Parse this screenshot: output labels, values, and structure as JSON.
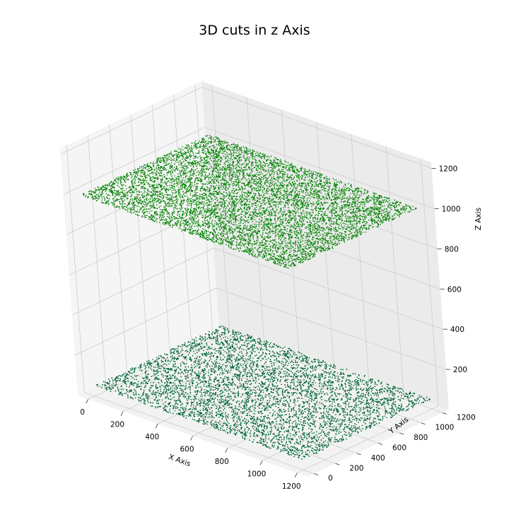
{
  "chart_data": {
    "type": "scatter",
    "title": "3D cuts in z Axis",
    "xlabel": "X Axis",
    "ylabel": "Y Axis",
    "zlabel": "Z Axis",
    "xlim": [
      -60,
      1260
    ],
    "ylim": [
      -60,
      1260
    ],
    "zlim": [
      0,
      1230
    ],
    "xticks": [
      0,
      200,
      400,
      600,
      800,
      1000,
      1200
    ],
    "yticks": [
      0,
      200,
      400,
      600,
      800,
      1000,
      1200
    ],
    "zticks": [
      200,
      400,
      600,
      800,
      1000,
      1200
    ],
    "grid": true,
    "series": [
      {
        "z": 1000,
        "x_range": [
          0,
          1200
        ],
        "y_range": [
          0,
          1200
        ],
        "color": "#008000",
        "point_estimate": 9000
      },
      {
        "z": 50,
        "x_range": [
          0,
          1200
        ],
        "y_range": [
          0,
          1200
        ],
        "color": "#006633",
        "point_estimate": 9000
      }
    ]
  }
}
